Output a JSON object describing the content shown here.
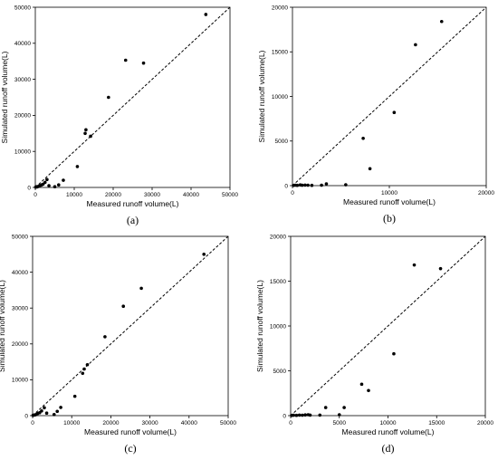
{
  "chart_data": [
    {
      "type": "scatter",
      "panel_label": "(a)",
      "xlabel": "Measured runoff volume(L)",
      "ylabel": "Simulated runoff volume(L)",
      "xlim": [
        0,
        50000
      ],
      "ylim": [
        0,
        50000
      ],
      "xticks": [
        0,
        10000,
        20000,
        30000,
        40000,
        50000
      ],
      "yticks": [
        0,
        10000,
        20000,
        30000,
        40000,
        50000
      ],
      "reference_line": "1:1 dashed",
      "points": [
        {
          "x": 100,
          "y": 80
        },
        {
          "x": 300,
          "y": 200
        },
        {
          "x": 500,
          "y": 150
        },
        {
          "x": 800,
          "y": 300
        },
        {
          "x": 1200,
          "y": 500
        },
        {
          "x": 1600,
          "y": 700
        },
        {
          "x": 2000,
          "y": 900
        },
        {
          "x": 2500,
          "y": 1400
        },
        {
          "x": 3000,
          "y": 2200
        },
        {
          "x": 3500,
          "y": 500
        },
        {
          "x": 5000,
          "y": 200
        },
        {
          "x": 6000,
          "y": 700
        },
        {
          "x": 7200,
          "y": 2000
        },
        {
          "x": 10800,
          "y": 5800
        },
        {
          "x": 12800,
          "y": 15000
        },
        {
          "x": 13000,
          "y": 16000
        },
        {
          "x": 14200,
          "y": 14200
        },
        {
          "x": 18800,
          "y": 25000
        },
        {
          "x": 23200,
          "y": 35300
        },
        {
          "x": 27800,
          "y": 34500
        },
        {
          "x": 43800,
          "y": 48000
        }
      ]
    },
    {
      "type": "scatter",
      "panel_label": "(b)",
      "xlabel": "Measured runoff volume(L)",
      "ylabel": "Simulated runoff volume(L)",
      "xlim": [
        0,
        20000
      ],
      "ylim": [
        0,
        20000
      ],
      "xticks": [
        0,
        10000,
        20000
      ],
      "yticks": [
        0,
        5000,
        10000,
        15000,
        20000
      ],
      "reference_line": "1:1 dashed",
      "points": [
        {
          "x": 100,
          "y": 20
        },
        {
          "x": 300,
          "y": 50
        },
        {
          "x": 500,
          "y": 30
        },
        {
          "x": 800,
          "y": 80
        },
        {
          "x": 1000,
          "y": 40
        },
        {
          "x": 1300,
          "y": 60
        },
        {
          "x": 1600,
          "y": 50
        },
        {
          "x": 2000,
          "y": 30
        },
        {
          "x": 3000,
          "y": 50
        },
        {
          "x": 3500,
          "y": 200
        },
        {
          "x": 5500,
          "y": 100
        },
        {
          "x": 7300,
          "y": 5300
        },
        {
          "x": 8000,
          "y": 1900
        },
        {
          "x": 10500,
          "y": 8200
        },
        {
          "x": 12700,
          "y": 15800
        },
        {
          "x": 15400,
          "y": 18400
        }
      ]
    },
    {
      "type": "scatter",
      "panel_label": "(c)",
      "xlabel": "Measured runoff volume(L)",
      "ylabel": "Simulated runoff volume(L)",
      "xlim": [
        0,
        50000
      ],
      "ylim": [
        0,
        50000
      ],
      "xticks": [
        0,
        10000,
        20000,
        30000,
        40000,
        50000
      ],
      "yticks": [
        0,
        10000,
        20000,
        30000,
        40000,
        50000
      ],
      "reference_line": "1:1 dashed",
      "points": [
        {
          "x": 100,
          "y": 80
        },
        {
          "x": 300,
          "y": 150
        },
        {
          "x": 600,
          "y": 200
        },
        {
          "x": 900,
          "y": 300
        },
        {
          "x": 1300,
          "y": 600
        },
        {
          "x": 1800,
          "y": 800
        },
        {
          "x": 2300,
          "y": 1300
        },
        {
          "x": 3000,
          "y": 2200
        },
        {
          "x": 3600,
          "y": 700
        },
        {
          "x": 5500,
          "y": 300
        },
        {
          "x": 6300,
          "y": 1200
        },
        {
          "x": 7200,
          "y": 2300
        },
        {
          "x": 10800,
          "y": 5400
        },
        {
          "x": 12800,
          "y": 11800
        },
        {
          "x": 13200,
          "y": 13000
        },
        {
          "x": 14000,
          "y": 14200
        },
        {
          "x": 18500,
          "y": 22000
        },
        {
          "x": 23200,
          "y": 30500
        },
        {
          "x": 27800,
          "y": 35500
        },
        {
          "x": 43800,
          "y": 45000
        }
      ]
    },
    {
      "type": "scatter",
      "panel_label": "(d)",
      "xlabel": "Measured runoff volume(L)",
      "ylabel": "Simulated runoff volume(L)",
      "xlim": [
        0,
        20000
      ],
      "ylim": [
        0,
        20000
      ],
      "xticks": [
        0,
        5000,
        10000,
        15000,
        20000
      ],
      "yticks": [
        0,
        5000,
        10000,
        15000,
        20000
      ],
      "reference_line": "1:1 dashed",
      "points": [
        {
          "x": 100,
          "y": 20
        },
        {
          "x": 300,
          "y": 40
        },
        {
          "x": 600,
          "y": 30
        },
        {
          "x": 900,
          "y": 60
        },
        {
          "x": 1200,
          "y": 50
        },
        {
          "x": 1500,
          "y": 80
        },
        {
          "x": 1800,
          "y": 100
        },
        {
          "x": 2000,
          "y": 60
        },
        {
          "x": 3000,
          "y": 60
        },
        {
          "x": 3600,
          "y": 900
        },
        {
          "x": 5000,
          "y": 100
        },
        {
          "x": 5500,
          "y": 900
        },
        {
          "x": 7300,
          "y": 3500
        },
        {
          "x": 8000,
          "y": 2800
        },
        {
          "x": 10600,
          "y": 6900
        },
        {
          "x": 12700,
          "y": 16800
        },
        {
          "x": 15400,
          "y": 16400
        }
      ]
    }
  ]
}
